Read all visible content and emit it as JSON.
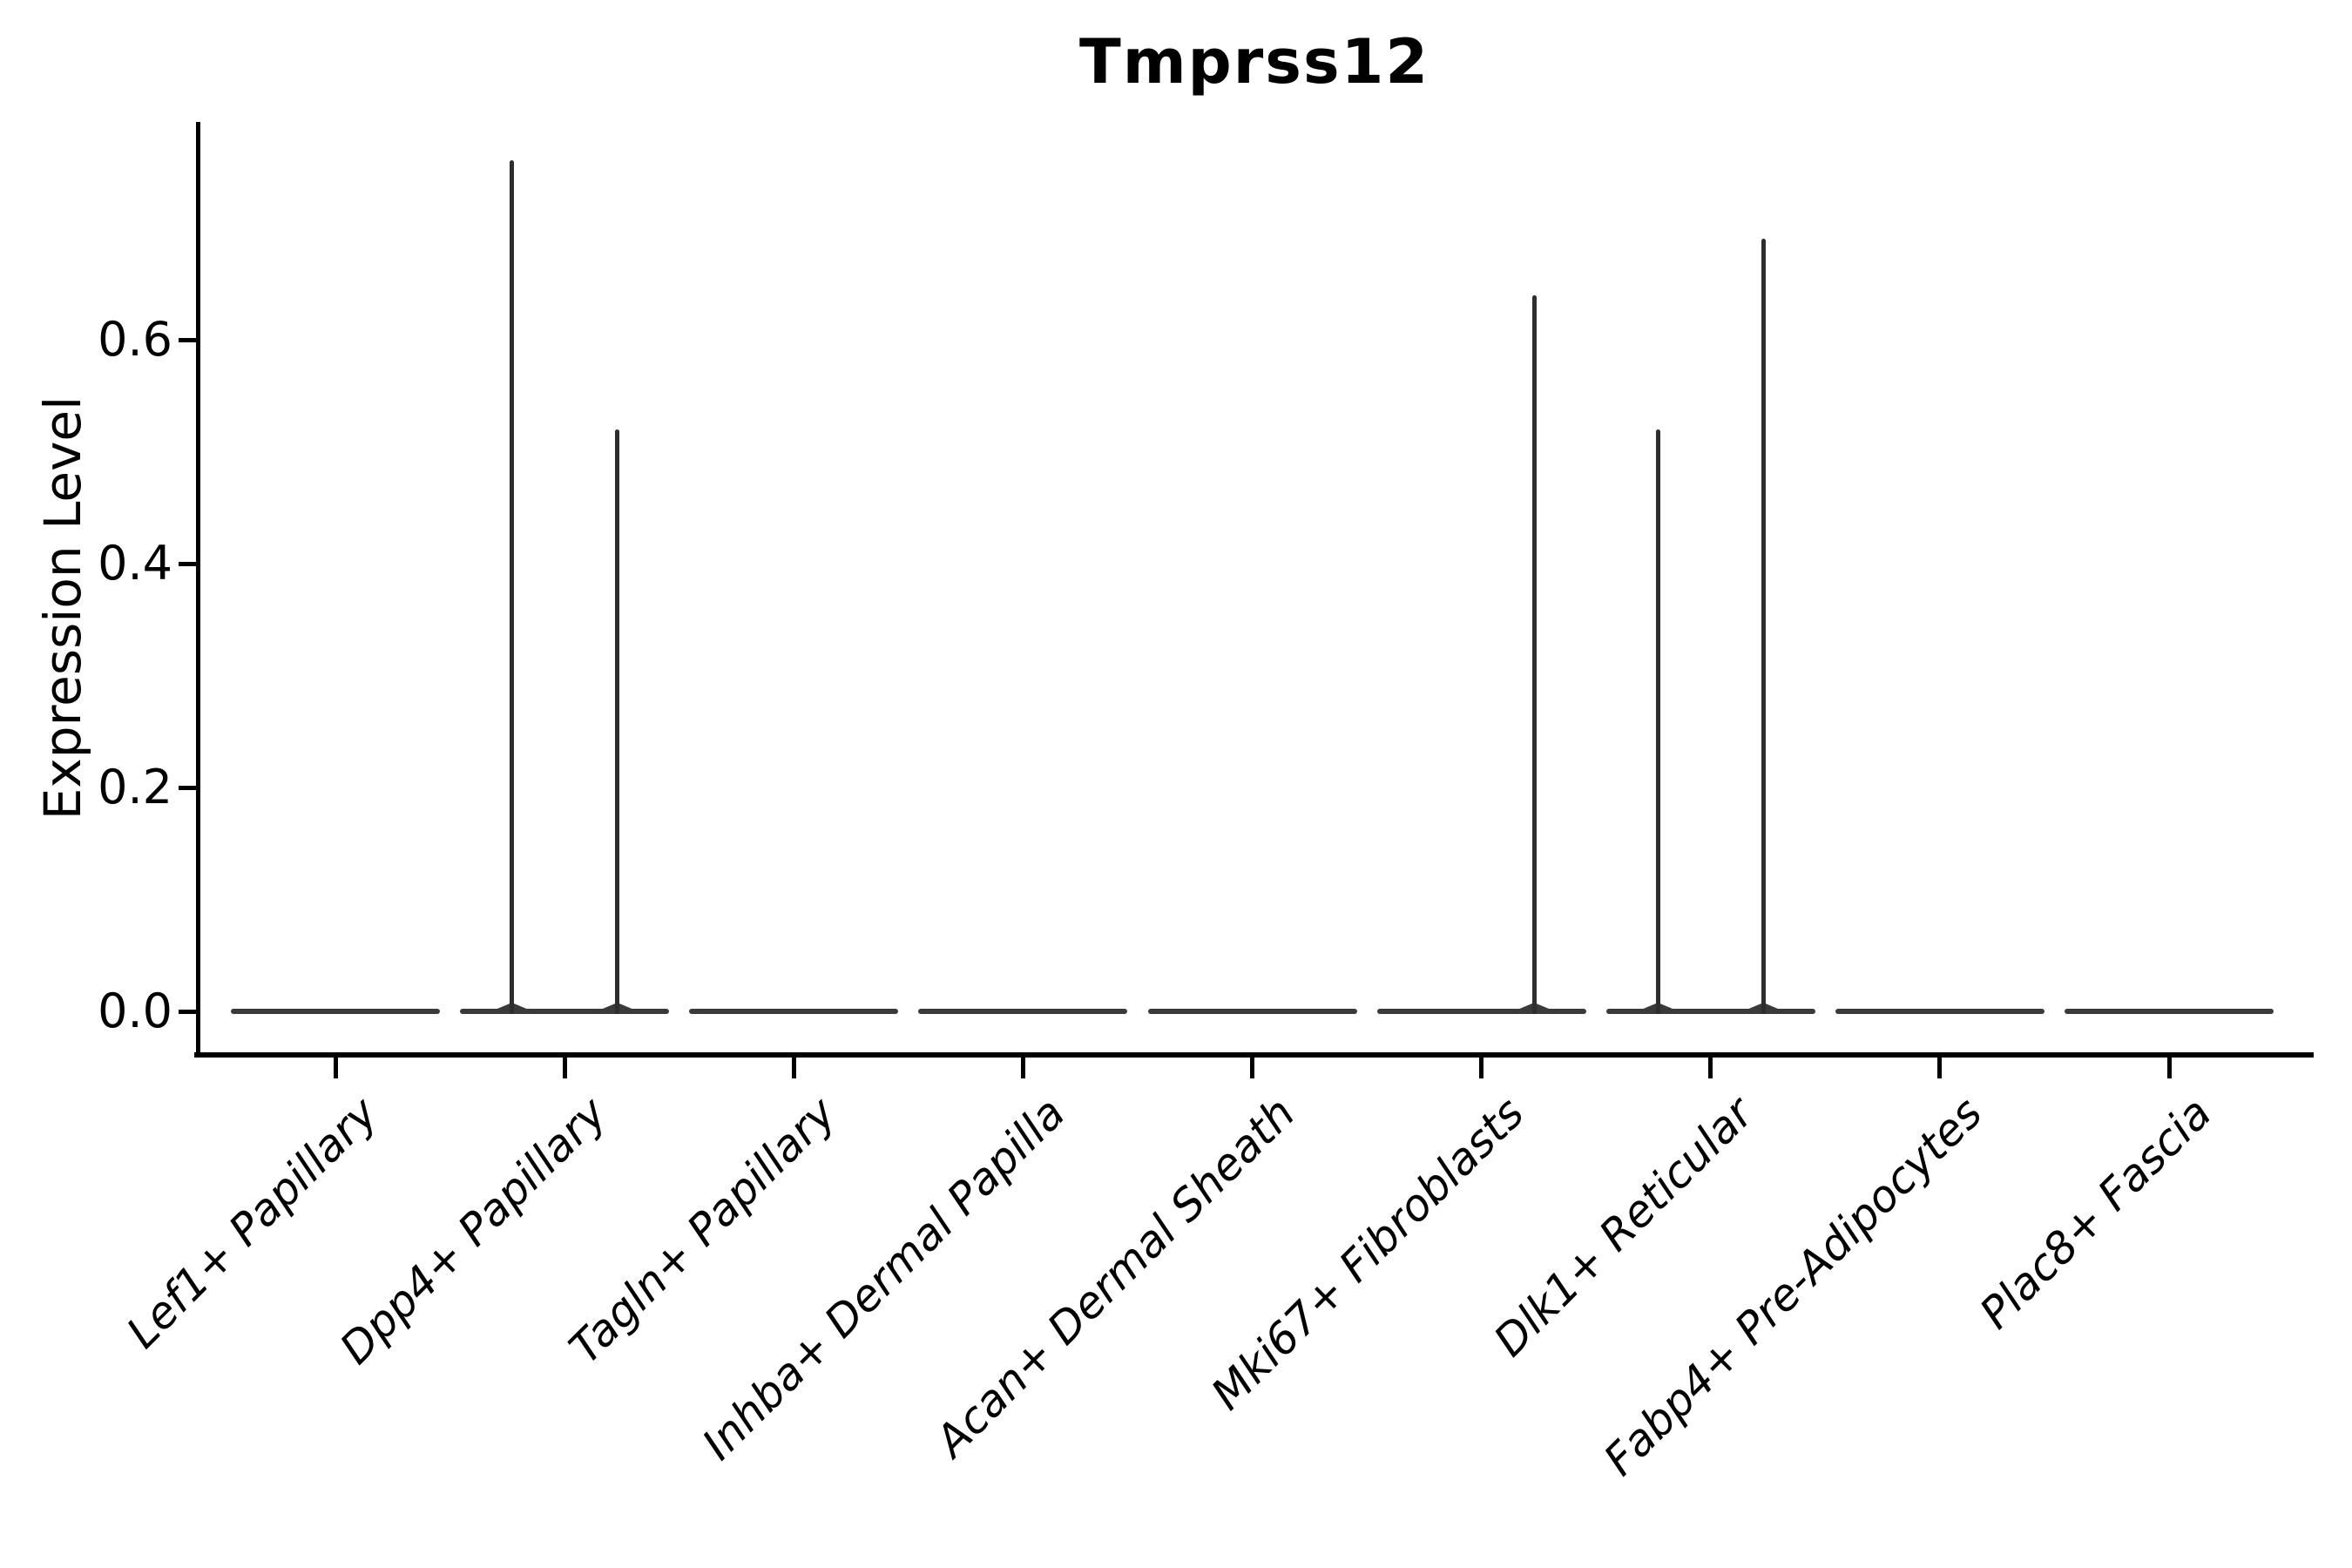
{
  "chart_data": {
    "type": "violin",
    "title": "Tmprss12",
    "ylabel": "Expression Level",
    "xlabel": "",
    "yticks": [
      0.0,
      0.2,
      0.4,
      0.6
    ],
    "ytick_labels": [
      "0.0",
      "0.2",
      "0.4",
      "0.6"
    ],
    "ylim": [
      -0.04,
      0.795
    ],
    "grid": false,
    "legend": "none",
    "categories": [
      "Lef1+ Papillary",
      "Dpp4+ Papillary",
      "Tagln+ Papillary",
      "Inhba+ Dermal Papilla",
      "Acan+ Dermal Sheath",
      "Mki67+ Fibroblasts",
      "Dlk1+ Reticular",
      "Fabp4+ Pre-Adipocytes",
      "Plac8+ Fascia"
    ],
    "violins": [
      {
        "category": "Lef1+ Papillary",
        "baseline_value": 0.0,
        "spikes": []
      },
      {
        "category": "Dpp4+ Papillary",
        "baseline_value": 0.0,
        "spikes": [
          {
            "offset": -0.23,
            "max": 0.76
          },
          {
            "offset": 0.23,
            "max": 0.52
          }
        ]
      },
      {
        "category": "Tagln+ Papillary",
        "baseline_value": 0.0,
        "spikes": []
      },
      {
        "category": "Inhba+ Dermal Papilla",
        "baseline_value": 0.0,
        "spikes": []
      },
      {
        "category": "Acan+ Dermal Sheath",
        "baseline_value": 0.0,
        "spikes": []
      },
      {
        "category": "Mki67+ Fibroblasts",
        "baseline_value": 0.0,
        "spikes": [
          {
            "offset": 0.23,
            "max": 0.64
          }
        ]
      },
      {
        "category": "Dlk1+ Reticular",
        "baseline_value": 0.0,
        "spikes": [
          {
            "offset": -0.23,
            "max": 0.52
          },
          {
            "offset": 0.23,
            "max": 0.69
          }
        ]
      },
      {
        "category": "Fabp4+ Pre-Adipocytes",
        "baseline_value": 0.0,
        "spikes": []
      },
      {
        "category": "Plac8+ Fascia",
        "baseline_value": 0.0,
        "spikes": []
      }
    ],
    "colors": {
      "axis": "#000000",
      "text": "#000000",
      "violin": "#3a3a3a",
      "spike": "#2e2e2e",
      "background": "#ffffff"
    }
  }
}
